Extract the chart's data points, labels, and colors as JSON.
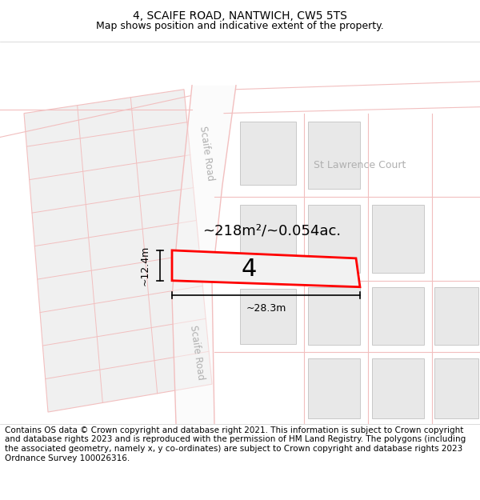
{
  "title": "4, SCAIFE ROAD, NANTWICH, CW5 5TS",
  "subtitle": "Map shows position and indicative extent of the property.",
  "footer": "Contains OS data © Crown copyright and database right 2021. This information is subject to Crown copyright and database rights 2023 and is reproduced with the permission of HM Land Registry. The polygons (including the associated geometry, namely x, y co-ordinates) are subject to Crown copyright and database rights 2023 Ordnance Survey 100026316.",
  "title_fontsize": 10,
  "subtitle_fontsize": 9,
  "footer_fontsize": 7.5,
  "property_label": "4",
  "area_label": "~218m²/~0.054ac.",
  "width_label": "~28.3m",
  "height_label": "~12.4m",
  "road_label_upper": "Scaife Road",
  "road_label_lower": "Scaife Road",
  "court_label": "St Lawrence Court",
  "road_pink": "#f2bfbf",
  "road_fill": "#f5f5f5",
  "building_fill": "#e8e8e8",
  "building_edge": "#c8c8c8",
  "prop_edge": "#ff0000",
  "prop_fill": "#f0f0f0",
  "label_gray": "#b0b0b0"
}
